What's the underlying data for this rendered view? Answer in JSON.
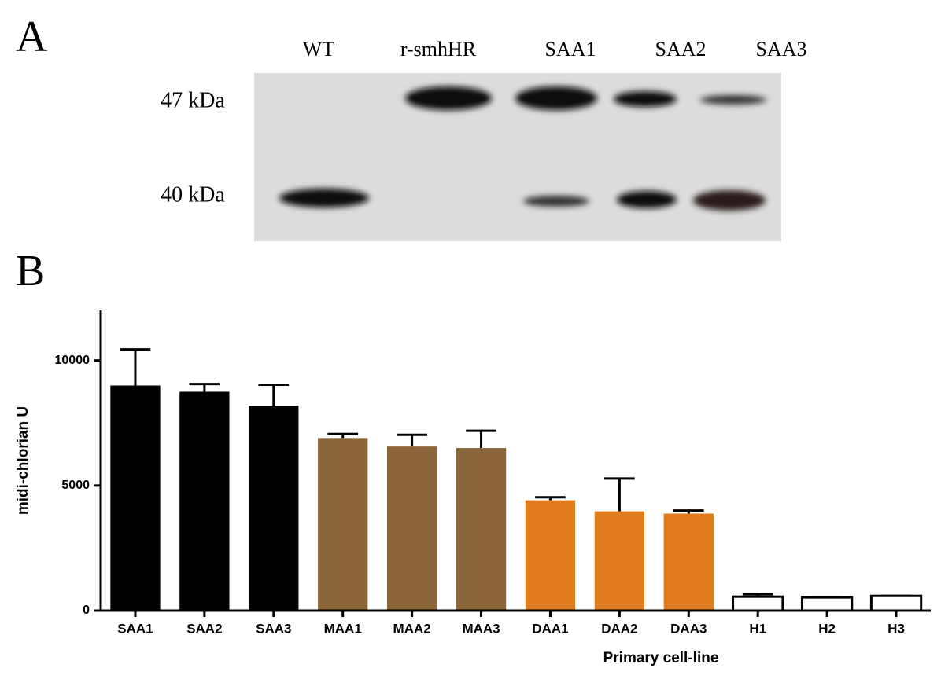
{
  "panel_a": {
    "label": "A",
    "lanes": [
      "WT",
      "r-smhHR",
      "SAA1",
      "SAA2",
      "SAA3"
    ],
    "markers": [
      "47 kDa",
      "40 kDa"
    ]
  },
  "panel_b": {
    "label": "B"
  },
  "chart_data": {
    "type": "bar",
    "x_label": "Primary cell-line",
    "y_label": "midi-chlorian U",
    "categories": [
      "SAA1",
      "SAA2",
      "SAA3",
      "MAA1",
      "MAA2",
      "MAA3",
      "DAA1",
      "DAA2",
      "DAA3",
      "H1",
      "H2",
      "H3"
    ],
    "values": [
      9000,
      8750,
      8190,
      6900,
      6560,
      6500,
      4410,
      3970,
      3880,
      560,
      530,
      590
    ],
    "errors": [
      1440,
      310,
      840,
      160,
      470,
      690,
      120,
      1310,
      120,
      100,
      0,
      0
    ],
    "colors": [
      "#000000",
      "#000000",
      "#000000",
      "#8a6539",
      "#8a6539",
      "#8a6539",
      "#e07b20",
      "#e07b20",
      "#e07b20",
      "#ffffff",
      "#ffffff",
      "#ffffff"
    ],
    "ylim": [
      0,
      12000
    ],
    "yticks": [
      0,
      5000,
      10000
    ],
    "grid": false
  }
}
